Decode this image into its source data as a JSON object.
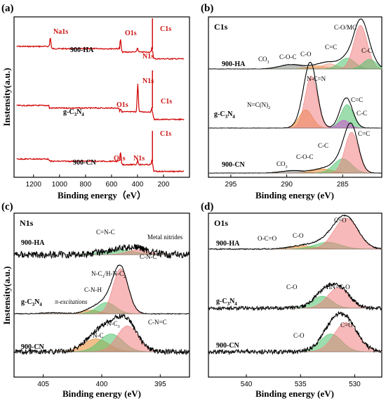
{
  "chart_data": [
    {
      "type": "line",
      "panel": "(a)",
      "xlabel": "Binding energy（eV）",
      "ylabel": "Instensity(a.u.)",
      "xlim": [
        1350,
        0
      ],
      "xticks": [
        1200,
        1000,
        800,
        600,
        400,
        200
      ],
      "series": [
        {
          "name": "900-HA",
          "peaks": [
            {
              "label": "Na1s",
              "x": 1071
            },
            {
              "label": "O1s",
              "x": 531
            },
            {
              "label": "N1s",
              "x": 400
            },
            {
              "label": "C1s",
              "x": 285
            }
          ]
        },
        {
          "name": "g-C3N4",
          "peaks": [
            {
              "label": "O1s",
              "x": 531
            },
            {
              "label": "N1s",
              "x": 398
            },
            {
              "label": "C1s",
              "x": 285
            }
          ]
        },
        {
          "name": "900-CN",
          "peaks": [
            {
              "label": "O1s",
              "x": 531
            },
            {
              "label": "N1s",
              "x": 399
            },
            {
              "label": "C1s",
              "x": 285
            }
          ]
        }
      ]
    },
    {
      "type": "line",
      "panel": "(b)",
      "title": "C1s",
      "xlabel": "Binding energy (eV)",
      "xlim": [
        297,
        281.5
      ],
      "xticks": [
        295,
        290,
        285
      ],
      "series": [
        {
          "name": "900-HA",
          "components": [
            {
              "label": "CO3",
              "center": 289.6,
              "height": 0.1,
              "width": 1.0,
              "color": "#888888"
            },
            {
              "label": "C-O-C",
              "center": 287.3,
              "height": 0.07,
              "width": 0.8,
              "color": "#e88b2e"
            },
            {
              "label": "C-O",
              "center": 286.2,
              "height": 0.12,
              "width": 0.7,
              "color": "#f0a08a"
            },
            {
              "label": "C=C",
              "center": 284.6,
              "height": 0.25,
              "width": 0.7,
              "color": "#4fc36b"
            },
            {
              "label": "C-O/MC",
              "center": 283.4,
              "height": 1.0,
              "width": 0.6,
              "color": "#f08080"
            },
            {
              "label": "C-C",
              "center": 282.6,
              "height": 0.22,
              "width": 0.6,
              "color": "#4fc36b"
            }
          ]
        },
        {
          "name": "g-C3N4",
          "components": [
            {
              "label": "N=C(N)2",
              "center": 288.3,
              "height": 0.35,
              "width": 0.6,
              "color": "#e88b2e"
            },
            {
              "label": "N-C=N",
              "center": 287.8,
              "height": 1.0,
              "width": 0.55,
              "color": "#f08080"
            },
            {
              "label": "C=C",
              "center": 284.6,
              "height": 0.45,
              "width": 0.55,
              "color": "#4fc36b"
            },
            {
              "label": "C-C",
              "center": 284.9,
              "height": 0.15,
              "width": 0.5,
              "color": "#d04fd0"
            }
          ]
        },
        {
          "name": "900-CN",
          "components": [
            {
              "label": "CO3",
              "center": 289.5,
              "height": 0.06,
              "width": 1.0,
              "color": "#888888"
            },
            {
              "label": "C-O-C",
              "center": 286.8,
              "height": 0.1,
              "width": 0.9,
              "color": "#e88b2e"
            },
            {
              "label": "C-C",
              "center": 285.0,
              "height": 0.35,
              "width": 0.8,
              "color": "#4fc36b"
            },
            {
              "label": "C=C",
              "center": 284.2,
              "height": 1.0,
              "width": 0.6,
              "color": "#f08080"
            }
          ]
        }
      ]
    },
    {
      "type": "line",
      "panel": "(c)",
      "title": "N1s",
      "xlabel": "Binding energy (eV)",
      "ylabel": "Instensity(a.u.)",
      "xlim": [
        407.5,
        392.5
      ],
      "xticks": [
        405,
        400,
        395
      ],
      "series": [
        {
          "name": "900-HA",
          "components": [
            {
              "label": "C=N-C",
              "center": 398.6,
              "height": 0.5,
              "width": 1.4,
              "color": "#4fc36b"
            },
            {
              "label": "Metal nitrides",
              "center": 396.9,
              "height": 0.5,
              "width": 0.9,
              "color": "#f08080"
            }
          ]
        },
        {
          "name": "g-C3N4",
          "components": [
            {
              "label": "π-excitations",
              "center": 404.2,
              "height": 0.02,
              "width": 1.0,
              "color": "#aaaaaa"
            },
            {
              "label": "C-N-H",
              "center": 400.9,
              "height": 0.08,
              "width": 0.7,
              "color": "#e88b2e"
            },
            {
              "label": "N-C3/H-N-C2",
              "center": 399.6,
              "height": 0.25,
              "width": 0.8,
              "color": "#4fc36b"
            },
            {
              "label": "C-N-C",
              "center": 398.4,
              "height": 1.0,
              "width": 0.65,
              "color": "#f08080"
            }
          ]
        },
        {
          "name": "900-CN",
          "components": [
            {
              "label": "N-C",
              "center": 400.5,
              "height": 0.4,
              "width": 1.1,
              "color": "#e88b2e"
            },
            {
              "label": "N-C3",
              "center": 399.2,
              "height": 0.55,
              "width": 1.0,
              "color": "#4fc36b"
            },
            {
              "label": "C-N=C",
              "center": 397.8,
              "height": 0.8,
              "width": 0.9,
              "color": "#f08080"
            }
          ]
        }
      ]
    },
    {
      "type": "line",
      "panel": "(d)",
      "title": "O1s",
      "xlabel": "Binding energy (eV)",
      "xlim": [
        543.5,
        527.5
      ],
      "xticks": [
        540,
        535,
        530
      ],
      "series": [
        {
          "name": "900-HA",
          "components": [
            {
              "label": "O-C=O",
              "center": 534.8,
              "height": 0.1,
              "width": 1.2,
              "color": "#e88b2e"
            },
            {
              "label": "C-O",
              "center": 532.5,
              "height": 0.22,
              "width": 1.2,
              "color": "#4fc36b"
            },
            {
              "label": "C=O",
              "center": 530.8,
              "height": 1.0,
              "width": 1.1,
              "color": "#f08080"
            }
          ]
        },
        {
          "name": "g-C3N4",
          "components": [
            {
              "label": "C-O",
              "center": 533.0,
              "height": 0.5,
              "width": 0.9,
              "color": "#4fc36b"
            },
            {
              "label": "HN=C-O",
              "center": 531.5,
              "height": 0.85,
              "width": 1.0,
              "color": "#f08080"
            }
          ]
        },
        {
          "name": "900-CN",
          "components": [
            {
              "label": "C-O",
              "center": 532.2,
              "height": 0.55,
              "width": 1.0,
              "color": "#4fc36b"
            },
            {
              "label": "C=O",
              "center": 530.8,
              "height": 0.9,
              "width": 1.1,
              "color": "#f08080"
            }
          ]
        }
      ]
    }
  ]
}
